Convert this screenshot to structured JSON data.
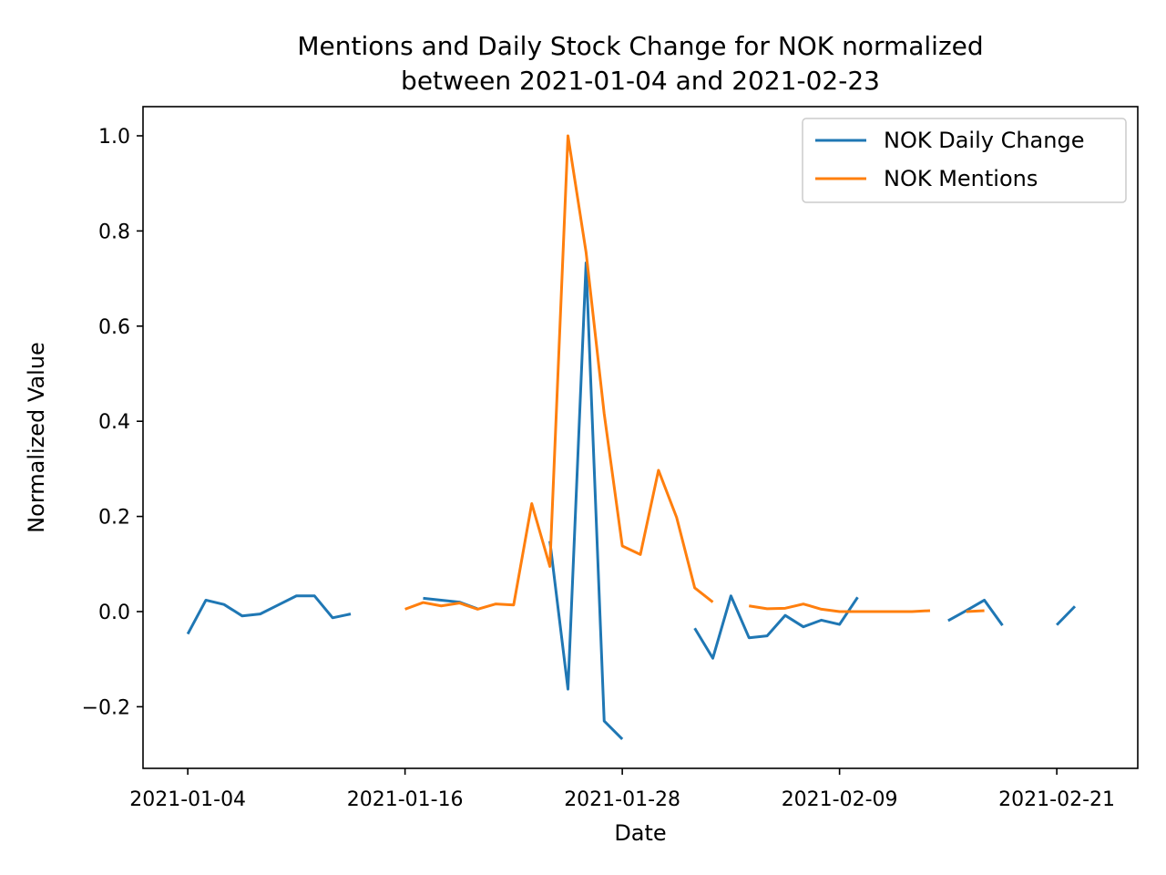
{
  "chart_data": {
    "type": "line",
    "title": "Mentions and Daily Stock Change for NOK normalized",
    "subtitle": "between 2021-01-04 and 2021-02-23",
    "xlabel": "Date",
    "ylabel": "Normalized Value",
    "xlim": [
      "2021-01-04",
      "2021-02-23"
    ],
    "ylim": [
      -0.3,
      1.0
    ],
    "x_ticks": [
      "2021-01-04",
      "2021-01-16",
      "2021-01-28",
      "2021-02-09",
      "2021-02-21"
    ],
    "x_tick_labels": [
      "2021-01-04",
      "2021-01-16",
      "2021-01-28",
      "2021-02-09",
      "2021-02-21"
    ],
    "y_ticks": [
      -0.2,
      0.0,
      0.2,
      0.4,
      0.6,
      0.8,
      1.0
    ],
    "y_tick_labels": [
      "−0.2",
      "0.0",
      "0.2",
      "0.4",
      "0.6",
      "0.8",
      "1.0"
    ],
    "grid": false,
    "legend_position": "top-right",
    "x": [
      "2021-01-04",
      "2021-01-05",
      "2021-01-06",
      "2021-01-07",
      "2021-01-08",
      "2021-01-09",
      "2021-01-10",
      "2021-01-11",
      "2021-01-12",
      "2021-01-13",
      "2021-01-14",
      "2021-01-15",
      "2021-01-16",
      "2021-01-17",
      "2021-01-18",
      "2021-01-19",
      "2021-01-20",
      "2021-01-21",
      "2021-01-22",
      "2021-01-23",
      "2021-01-24",
      "2021-01-25",
      "2021-01-26",
      "2021-01-27",
      "2021-01-28",
      "2021-01-29",
      "2021-01-30",
      "2021-01-31",
      "2021-02-01",
      "2021-02-02",
      "2021-02-03",
      "2021-02-04",
      "2021-02-05",
      "2021-02-06",
      "2021-02-07",
      "2021-02-08",
      "2021-02-09",
      "2021-02-10",
      "2021-02-11",
      "2021-02-12",
      "2021-02-13",
      "2021-02-14",
      "2021-02-15",
      "2021-02-16",
      "2021-02-17",
      "2021-02-18",
      "2021-02-19",
      "2021-02-20",
      "2021-02-21",
      "2021-02-22",
      "2021-02-23"
    ],
    "series": [
      {
        "name": "NOK Daily Change",
        "color": "#1f77b4",
        "values": [
          -0.047,
          0.024,
          0.015,
          -0.009,
          -0.005,
          0.014,
          0.033,
          0.033,
          -0.013,
          -0.005,
          null,
          null,
          null,
          0.028,
          0.024,
          0.02,
          0.006,
          null,
          null,
          null,
          0.148,
          -0.163,
          0.733,
          -0.23,
          -0.268,
          null,
          null,
          null,
          -0.035,
          -0.098,
          0.033,
          -0.055,
          -0.051,
          -0.008,
          -0.032,
          -0.018,
          -0.027,
          0.03,
          null,
          null,
          null,
          null,
          -0.019,
          0.002,
          0.024,
          -0.029,
          null,
          null,
          -0.028,
          0.011,
          null
        ]
      },
      {
        "name": "NOK Mentions",
        "color": "#ff7f0e",
        "values": [
          null,
          null,
          null,
          null,
          null,
          null,
          null,
          null,
          null,
          null,
          null,
          null,
          0.005,
          0.019,
          0.012,
          0.018,
          0.005,
          0.016,
          0.014,
          0.227,
          0.095,
          1.0,
          0.755,
          0.416,
          0.138,
          0.12,
          0.297,
          0.198,
          0.05,
          0.02,
          null,
          0.012,
          0.006,
          0.007,
          0.016,
          0.005,
          0.0,
          0.0,
          0.0,
          0.0,
          0.0,
          0.002,
          null,
          0.0,
          0.002,
          null,
          null,
          null,
          null,
          null,
          null
        ]
      }
    ]
  }
}
